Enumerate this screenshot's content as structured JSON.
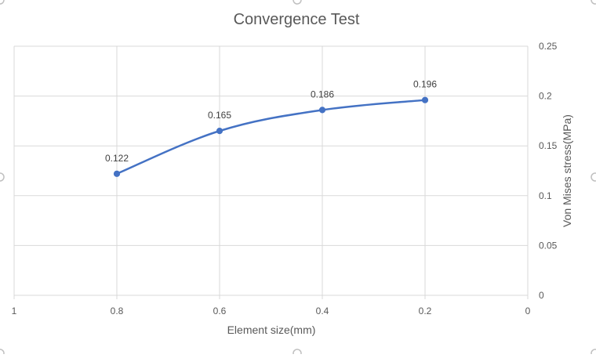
{
  "chart_data": {
    "type": "scatter",
    "title": "Convergence Test",
    "xlabel": "Element size(mm)",
    "ylabel": "Von Mises stress(MPa)",
    "x_reversed": true,
    "xlim": [
      0,
      1
    ],
    "ylim": [
      0,
      0.25
    ],
    "x_ticks": [
      "1",
      "0.8",
      "0.6",
      "0.4",
      "0.2",
      "0"
    ],
    "y_ticks": [
      "0",
      "0.05",
      "0.1",
      "0.15",
      "0.2",
      "0.25"
    ],
    "y_axis_position": "right",
    "grid": true,
    "line": "smooth",
    "series": [
      {
        "x": [
          0.8,
          0.6,
          0.4,
          0.2
        ],
        "y": [
          0.122,
          0.165,
          0.186,
          0.196
        ],
        "labels": [
          "0.122",
          "0.165",
          "0.186",
          "0.196"
        ],
        "color": "#4472C4"
      }
    ]
  },
  "colors": {
    "grid": "#D9D9D9",
    "text": "#595959",
    "handle": "#C0C0C0"
  }
}
